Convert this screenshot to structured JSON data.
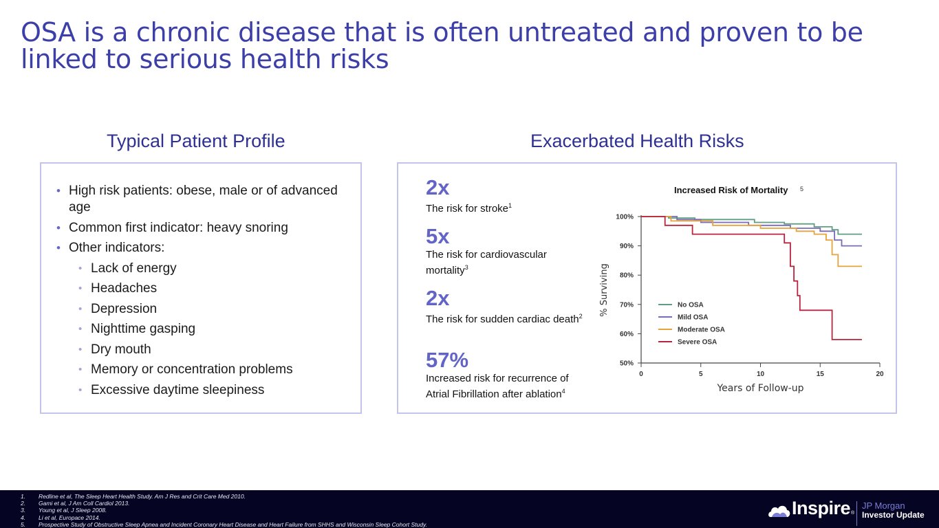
{
  "slide": {
    "title": "OSA is a chronic disease that is often untreated and proven to be linked to serious health risks"
  },
  "profile": {
    "heading": "Typical Patient Profile",
    "bullets": [
      "High risk patients: obese, male or of advanced age",
      "Common first indicator: heavy snoring",
      "Other indicators:"
    ],
    "sub_bullets": [
      "Lack of energy",
      "Headaches",
      "Depression",
      "Nighttime gasping",
      "Dry mouth",
      "Memory or concentration problems",
      "Excessive daytime sleepiness"
    ]
  },
  "risks": {
    "heading": "Exacerbated Health Risks",
    "stats": [
      {
        "value": "2x",
        "text": "The risk for stroke",
        "ref": "1"
      },
      {
        "value": "5x",
        "text": "The risk for cardiovascular mortality",
        "ref": "3"
      },
      {
        "value": "2x",
        "text": "The risk for sudden cardiac death",
        "ref": "2"
      },
      {
        "value": "57%",
        "text": "Increased risk for recurrence of Atrial Fibrillation after ablation",
        "ref": "4"
      }
    ]
  },
  "chart_data": {
    "type": "line",
    "title": "Increased Risk of Mortality",
    "title_ref": "5",
    "xlabel": "Years of Follow-up",
    "ylabel": "% Surviving",
    "xlim": [
      0,
      20
    ],
    "ylim": [
      50,
      100
    ],
    "xticks": [
      0,
      5,
      10,
      15,
      20
    ],
    "yticks": [
      50,
      60,
      70,
      80,
      90,
      100
    ],
    "ytick_labels": [
      "50%",
      "60%",
      "70%",
      "80%",
      "90%",
      "100%"
    ],
    "grid": false,
    "legend": "inside lower-left",
    "series": [
      {
        "name": "No OSA",
        "color": "#5e9e83",
        "x": [
          0,
          2.3,
          2.3,
          4.5,
          4.5,
          9.5,
          9.5,
          12,
          12,
          14.5,
          14.5,
          16,
          16,
          16.5,
          16.5,
          18.5
        ],
        "y": [
          100,
          100,
          99.5,
          99.5,
          99,
          99,
          98,
          98,
          97.5,
          97.5,
          96.5,
          96.5,
          95.5,
          95.5,
          94,
          94
        ]
      },
      {
        "name": "Mild OSA",
        "color": "#7a6ab8",
        "x": [
          0,
          3,
          3,
          5,
          5,
          9,
          9,
          12.5,
          12.5,
          15,
          15,
          16.2,
          16.2,
          16.8,
          16.8,
          18.5
        ],
        "y": [
          100,
          100,
          99,
          99,
          98,
          98,
          97,
          97,
          96,
          96,
          95,
          95,
          92,
          92,
          90,
          90
        ]
      },
      {
        "name": "Moderate OSA",
        "color": "#e8a23a",
        "x": [
          0,
          2.5,
          2.5,
          6,
          6,
          10,
          10,
          13,
          13,
          14.5,
          14.5,
          15.5,
          15.5,
          16,
          16,
          16.5,
          16.5,
          18.5
        ],
        "y": [
          100,
          100,
          98.5,
          98.5,
          97,
          97,
          96,
          96,
          95,
          95,
          94,
          94,
          92,
          92,
          87,
          87,
          83,
          83
        ]
      },
      {
        "name": "Severe OSA",
        "color": "#b8233e",
        "x": [
          0,
          2,
          2,
          4.3,
          4.3,
          12,
          12,
          12.5,
          12.5,
          12.8,
          12.8,
          13.1,
          13.1,
          13.3,
          13.3,
          14,
          14,
          16,
          16,
          18.5
        ],
        "y": [
          100,
          100,
          97,
          97,
          94,
          94,
          91,
          91,
          83,
          83,
          78,
          78,
          73,
          73,
          68,
          68,
          68,
          68,
          58,
          58
        ]
      }
    ]
  },
  "footer": {
    "references": [
      {
        "num": "1.",
        "text": "Redline et al, The Sleep Heart Health Study.  Am J Res and Crit Care Med 2010."
      },
      {
        "num": "2.",
        "text": "Gami et al, J Am Coll Cardiol 2013."
      },
      {
        "num": "3.",
        "text": "Young et al, J Sleep 2008."
      },
      {
        "num": "4.",
        "text": "Li et al, Europace 2014."
      },
      {
        "num": "5.",
        "text": "Prospective Study of Obstructive Sleep Apnea and Incident Coronary Heart Disease and Heart Failure from SHHS and Wisconsin Sleep Cohort Study."
      }
    ],
    "brand": "Inspire",
    "brand_mark": "®",
    "tagline_1": "JP Morgan",
    "tagline_2": "Investor Update",
    "logo_icon": "cloud-icon"
  }
}
